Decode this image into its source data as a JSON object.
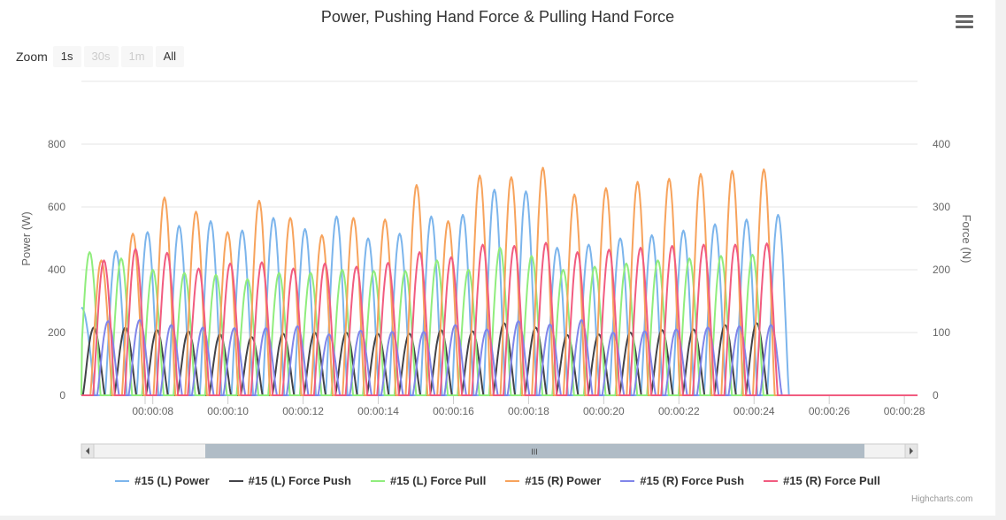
{
  "title": "Power, Pushing Hand Force & Pulling Hand Force",
  "zoom": {
    "label": "Zoom",
    "buttons": [
      {
        "label": "1s",
        "state": "normal"
      },
      {
        "label": "30s",
        "state": "disabled"
      },
      {
        "label": "1m",
        "state": "disabled"
      },
      {
        "label": "All",
        "state": "normal"
      }
    ]
  },
  "credit": "Highcharts.com",
  "scrollbar": {
    "grip": "III"
  },
  "chart_data": {
    "type": "line",
    "title": "Power, Pushing Hand Force & Pulling Hand Force",
    "xlabel": "",
    "ylabel": "Power (W)",
    "y2label": "Force (N)",
    "ylim": [
      0,
      1000
    ],
    "y2lim": [
      0,
      500
    ],
    "yticks": [
      "0",
      "200",
      "400",
      "600",
      "800"
    ],
    "y2ticks": [
      "0",
      "100",
      "200",
      "300",
      "400"
    ],
    "xlim_seconds": [
      6.1,
      28.35
    ],
    "xticks": [
      "00:00:08",
      "00:00:10",
      "00:00:12",
      "00:00:14",
      "00:00:16",
      "00:00:18",
      "00:00:20",
      "00:00:22",
      "00:00:24",
      "00:00:26",
      "00:00:28"
    ],
    "grid": true,
    "legend_position": "bottom",
    "series": [
      {
        "name": "#15 (L) Power",
        "axis": "left",
        "color": "#7cb5ec",
        "start_seconds": 6.1,
        "value_at_start": 280,
        "peaks_seconds": [
          7.02,
          7.86,
          8.7,
          9.54,
          10.38,
          11.21,
          12.05,
          12.89,
          13.73,
          14.57,
          15.41,
          16.25,
          17.09,
          17.93,
          18.76,
          19.6,
          20.44,
          21.28,
          22.12,
          22.96,
          23.8,
          24.64
        ],
        "peaks": [
          460,
          520,
          540,
          555,
          525,
          565,
          530,
          570,
          500,
          515,
          570,
          575,
          655,
          650,
          470,
          480,
          500,
          510,
          525,
          545,
          560,
          575
        ]
      },
      {
        "name": "#15 (L) Force Push",
        "axis": "right",
        "color": "#434348",
        "start_seconds": 6.1,
        "value_at_start": 0,
        "peaks_seconds": [
          6.43,
          7.27,
          8.11,
          8.95,
          9.79,
          10.63,
          11.47,
          12.31,
          13.15,
          13.99,
          14.83,
          15.67,
          16.51,
          17.35,
          18.19,
          19.03,
          19.87,
          20.71,
          21.55,
          22.39,
          23.23,
          24.07
        ],
        "peaks": [
          108,
          108,
          104,
          102,
          97,
          93,
          98,
          100,
          100,
          98,
          98,
          104,
          102,
          115,
          108,
          96,
          97,
          100,
          104,
          105,
          112,
          115
        ]
      },
      {
        "name": "#15 (L) Force Pull",
        "axis": "right",
        "color": "#90ed7d",
        "start_seconds": 6.1,
        "value_at_start": 0,
        "peaks_seconds": [
          6.32,
          7.16,
          8.0,
          8.84,
          9.68,
          10.52,
          11.36,
          12.2,
          13.04,
          13.88,
          14.72,
          15.56,
          16.4,
          17.24,
          18.08,
          18.92,
          19.76,
          20.6,
          21.44,
          22.28,
          23.12,
          23.96
        ],
        "peaks": [
          228,
          218,
          200,
          195,
          192,
          185,
          195,
          195,
          200,
          198,
          198,
          215,
          200,
          235,
          222,
          200,
          205,
          210,
          215,
          218,
          222,
          224
        ]
      },
      {
        "name": "#15 (R) Power",
        "axis": "left",
        "color": "#f7a35c",
        "start_seconds": 6.1,
        "value_at_start": 0,
        "peaks_seconds": [
          6.63,
          7.47,
          8.31,
          9.15,
          9.99,
          10.83,
          11.66,
          12.5,
          13.34,
          14.18,
          15.02,
          15.86,
          16.7,
          17.54,
          18.38,
          19.22,
          20.06,
          20.9,
          21.74,
          22.58,
          23.42,
          24.26
        ],
        "peaks": [
          430,
          515,
          630,
          585,
          520,
          620,
          565,
          510,
          565,
          560,
          670,
          555,
          700,
          695,
          725,
          640,
          660,
          680,
          690,
          705,
          715,
          720
        ]
      },
      {
        "name": "#15 (R) Force Push",
        "axis": "right",
        "color": "#8085e9",
        "start_seconds": 6.1,
        "value_at_start": 0,
        "peaks_seconds": [
          6.81,
          7.65,
          8.49,
          9.33,
          10.17,
          11.01,
          11.85,
          12.69,
          13.53,
          14.37,
          15.21,
          16.05,
          16.89,
          17.73,
          18.57,
          19.41,
          20.25,
          21.09,
          21.93,
          22.77,
          23.61,
          24.45
        ],
        "peaks": [
          118,
          120,
          112,
          108,
          107,
          107,
          110,
          97,
          103,
          101,
          101,
          112,
          105,
          118,
          113,
          120,
          100,
          102,
          105,
          108,
          110,
          112
        ]
      },
      {
        "name": "#15 (R) Force Pull",
        "axis": "right",
        "color": "#f15c80",
        "start_seconds": 6.1,
        "value_at_start": 0,
        "peaks_seconds": [
          6.7,
          7.54,
          8.38,
          9.22,
          10.06,
          10.9,
          11.74,
          12.58,
          13.42,
          14.26,
          15.1,
          15.94,
          16.78,
          17.62,
          18.46,
          19.3,
          20.14,
          20.98,
          21.82,
          22.66,
          23.5,
          24.34
        ],
        "peaks": [
          215,
          233,
          227,
          202,
          210,
          212,
          202,
          210,
          205,
          211,
          228,
          220,
          240,
          238,
          243,
          228,
          232,
          235,
          238,
          240,
          240,
          242
        ]
      }
    ]
  }
}
